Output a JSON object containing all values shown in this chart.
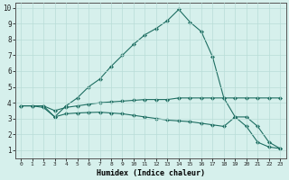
{
  "xlabel": "Humidex (Indice chaleur)",
  "background_color": "#d6f0ec",
  "grid_color": "#b8ddd7",
  "line_color": "#1e6e62",
  "xlim": [
    -0.5,
    23.5
  ],
  "ylim": [
    0.5,
    10.3
  ],
  "xticks": [
    0,
    1,
    2,
    3,
    4,
    5,
    6,
    7,
    8,
    9,
    10,
    11,
    12,
    13,
    14,
    15,
    16,
    17,
    18,
    19,
    20,
    21,
    22,
    23
  ],
  "yticks": [
    1,
    2,
    3,
    4,
    5,
    6,
    7,
    8,
    9,
    10
  ],
  "line1_x": [
    0,
    1,
    2,
    3,
    4,
    5,
    6,
    7,
    8,
    9,
    10,
    11,
    12,
    13,
    14,
    15,
    16,
    17,
    18,
    19,
    20,
    21,
    22,
    23
  ],
  "line1_y": [
    3.8,
    3.8,
    3.8,
    3.5,
    3.7,
    3.8,
    3.9,
    4.0,
    4.05,
    4.1,
    4.15,
    4.2,
    4.2,
    4.2,
    4.3,
    4.3,
    4.3,
    4.3,
    4.3,
    4.3,
    4.3,
    4.3,
    4.3,
    4.3
  ],
  "line2_x": [
    0,
    1,
    2,
    3,
    4,
    5,
    6,
    7,
    8,
    9,
    10,
    11,
    12,
    13,
    14,
    15,
    16,
    17,
    18,
    19,
    20,
    21,
    22,
    23
  ],
  "line2_y": [
    3.8,
    3.8,
    3.7,
    3.1,
    3.3,
    3.35,
    3.38,
    3.4,
    3.35,
    3.3,
    3.2,
    3.1,
    3.0,
    2.9,
    2.85,
    2.8,
    2.7,
    2.6,
    2.5,
    3.1,
    2.5,
    1.5,
    1.2,
    1.1
  ],
  "line3_x": [
    2,
    3,
    4,
    5,
    6,
    7,
    8,
    9,
    10,
    11,
    12,
    13,
    14,
    15,
    16,
    17,
    18,
    19,
    20,
    21,
    22,
    23
  ],
  "line3_y": [
    3.8,
    3.1,
    3.8,
    4.3,
    5.0,
    5.5,
    6.3,
    7.0,
    7.7,
    8.3,
    8.7,
    9.2,
    9.9,
    9.1,
    8.5,
    6.9,
    4.3,
    3.1,
    3.1,
    2.5,
    1.5,
    1.1
  ],
  "figsize": [
    3.2,
    2.0
  ],
  "dpi": 100
}
